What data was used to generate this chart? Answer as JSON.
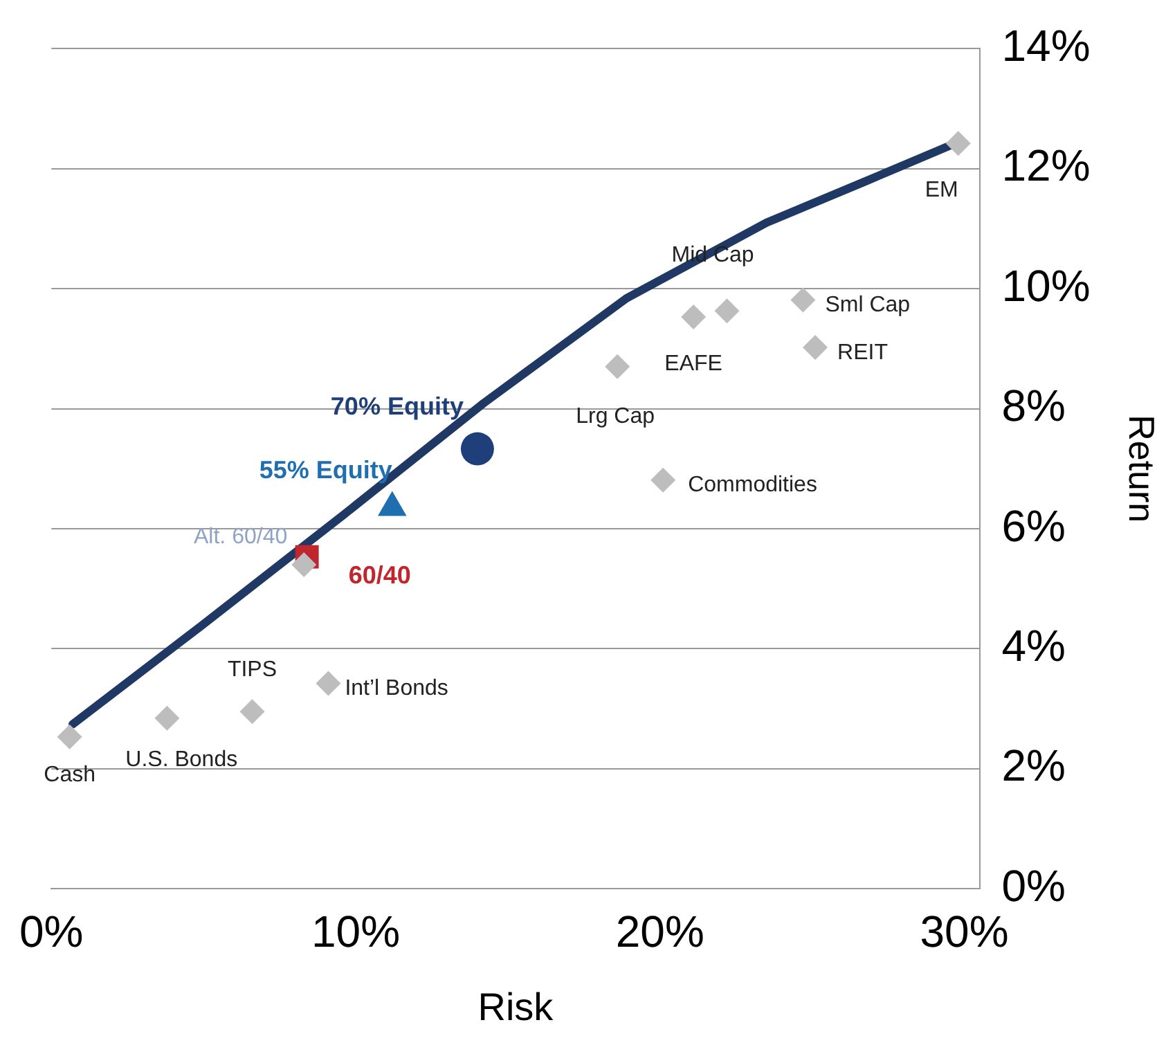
{
  "chart_data": {
    "type": "scatter",
    "xlabel": "Risk",
    "ylabel": "Return",
    "xlim": [
      0,
      30.5
    ],
    "xticks": [
      {
        "value": 0,
        "label": "0%"
      },
      {
        "value": 10,
        "label": "10%"
      },
      {
        "value": 20,
        "label": "20%"
      },
      {
        "value": 30,
        "label": "30%"
      }
    ],
    "ylim": [
      0,
      14
    ],
    "yticks": [
      {
        "value": 0,
        "label": "0%"
      },
      {
        "value": 2,
        "label": "2%"
      },
      {
        "value": 4,
        "label": "4%"
      },
      {
        "value": 6,
        "label": "6%"
      },
      {
        "value": 8,
        "label": "8%"
      },
      {
        "value": 10,
        "label": "10%"
      },
      {
        "value": 12,
        "label": "12%"
      },
      {
        "value": 14,
        "label": "14%"
      }
    ],
    "grid": "y",
    "legend": false,
    "series": [
      {
        "type": "line",
        "color": "#1f3864",
        "marker": "none",
        "line_style": "solid",
        "x": [
          0.7,
          4.9,
          9.6,
          14.2,
          18.9,
          23.5,
          26.8,
          29.6
        ],
        "values": [
          2.74,
          4.37,
          6.23,
          8.09,
          9.84,
          11.1,
          11.8,
          12.4
        ]
      },
      {
        "color": "#bdbdbd",
        "marker": "diamond",
        "x": [
          0.6,
          3.8,
          6.6,
          9.1,
          8.3,
          18.6,
          21.1,
          22.2,
          24.7,
          25.1,
          20.1,
          29.8
        ],
        "values": [
          2.53,
          2.84,
          2.95,
          3.42,
          5.4,
          8.7,
          9.53,
          9.63,
          9.81,
          9.02,
          6.81,
          12.42
        ]
      },
      {
        "name": "60/40",
        "color": "#c0262d",
        "marker": "square",
        "x": [
          8.4
        ],
        "values": [
          5.53
        ]
      },
      {
        "name": "55% Equity",
        "color": "#1f6fb0",
        "marker": "triangle",
        "x": [
          11.2
        ],
        "values": [
          6.35
        ]
      },
      {
        "name": "70% Equity",
        "color": "#1f3f7a",
        "marker": "circle",
        "x": [
          14.0
        ],
        "values": [
          7.33
        ]
      }
    ],
    "annotations": [
      {
        "text": "Cash",
        "x": 0.6,
        "y": 2.53
      },
      {
        "text": "U.S. Bonds",
        "x": 3.8,
        "y": 2.84
      },
      {
        "text": "TIPS",
        "x": 6.6,
        "y": 2.95
      },
      {
        "text": "Int’l Bonds",
        "x": 9.1,
        "y": 3.42
      },
      {
        "text": "Alt. 60/40",
        "x": 8.3,
        "y": 5.4
      },
      {
        "text": "Lrg Cap",
        "x": 18.6,
        "y": 8.7
      },
      {
        "text": "EAFE",
        "x": 21.1,
        "y": 9.53
      },
      {
        "text": "Mid Cap",
        "x": 22.2,
        "y": 9.63
      },
      {
        "text": "Sml Cap",
        "x": 24.7,
        "y": 9.81
      },
      {
        "text": "REIT",
        "x": 25.1,
        "y": 9.02
      },
      {
        "text": "Commodities",
        "x": 20.1,
        "y": 6.81
      },
      {
        "text": "EM",
        "x": 29.8,
        "y": 12.42
      }
    ]
  }
}
